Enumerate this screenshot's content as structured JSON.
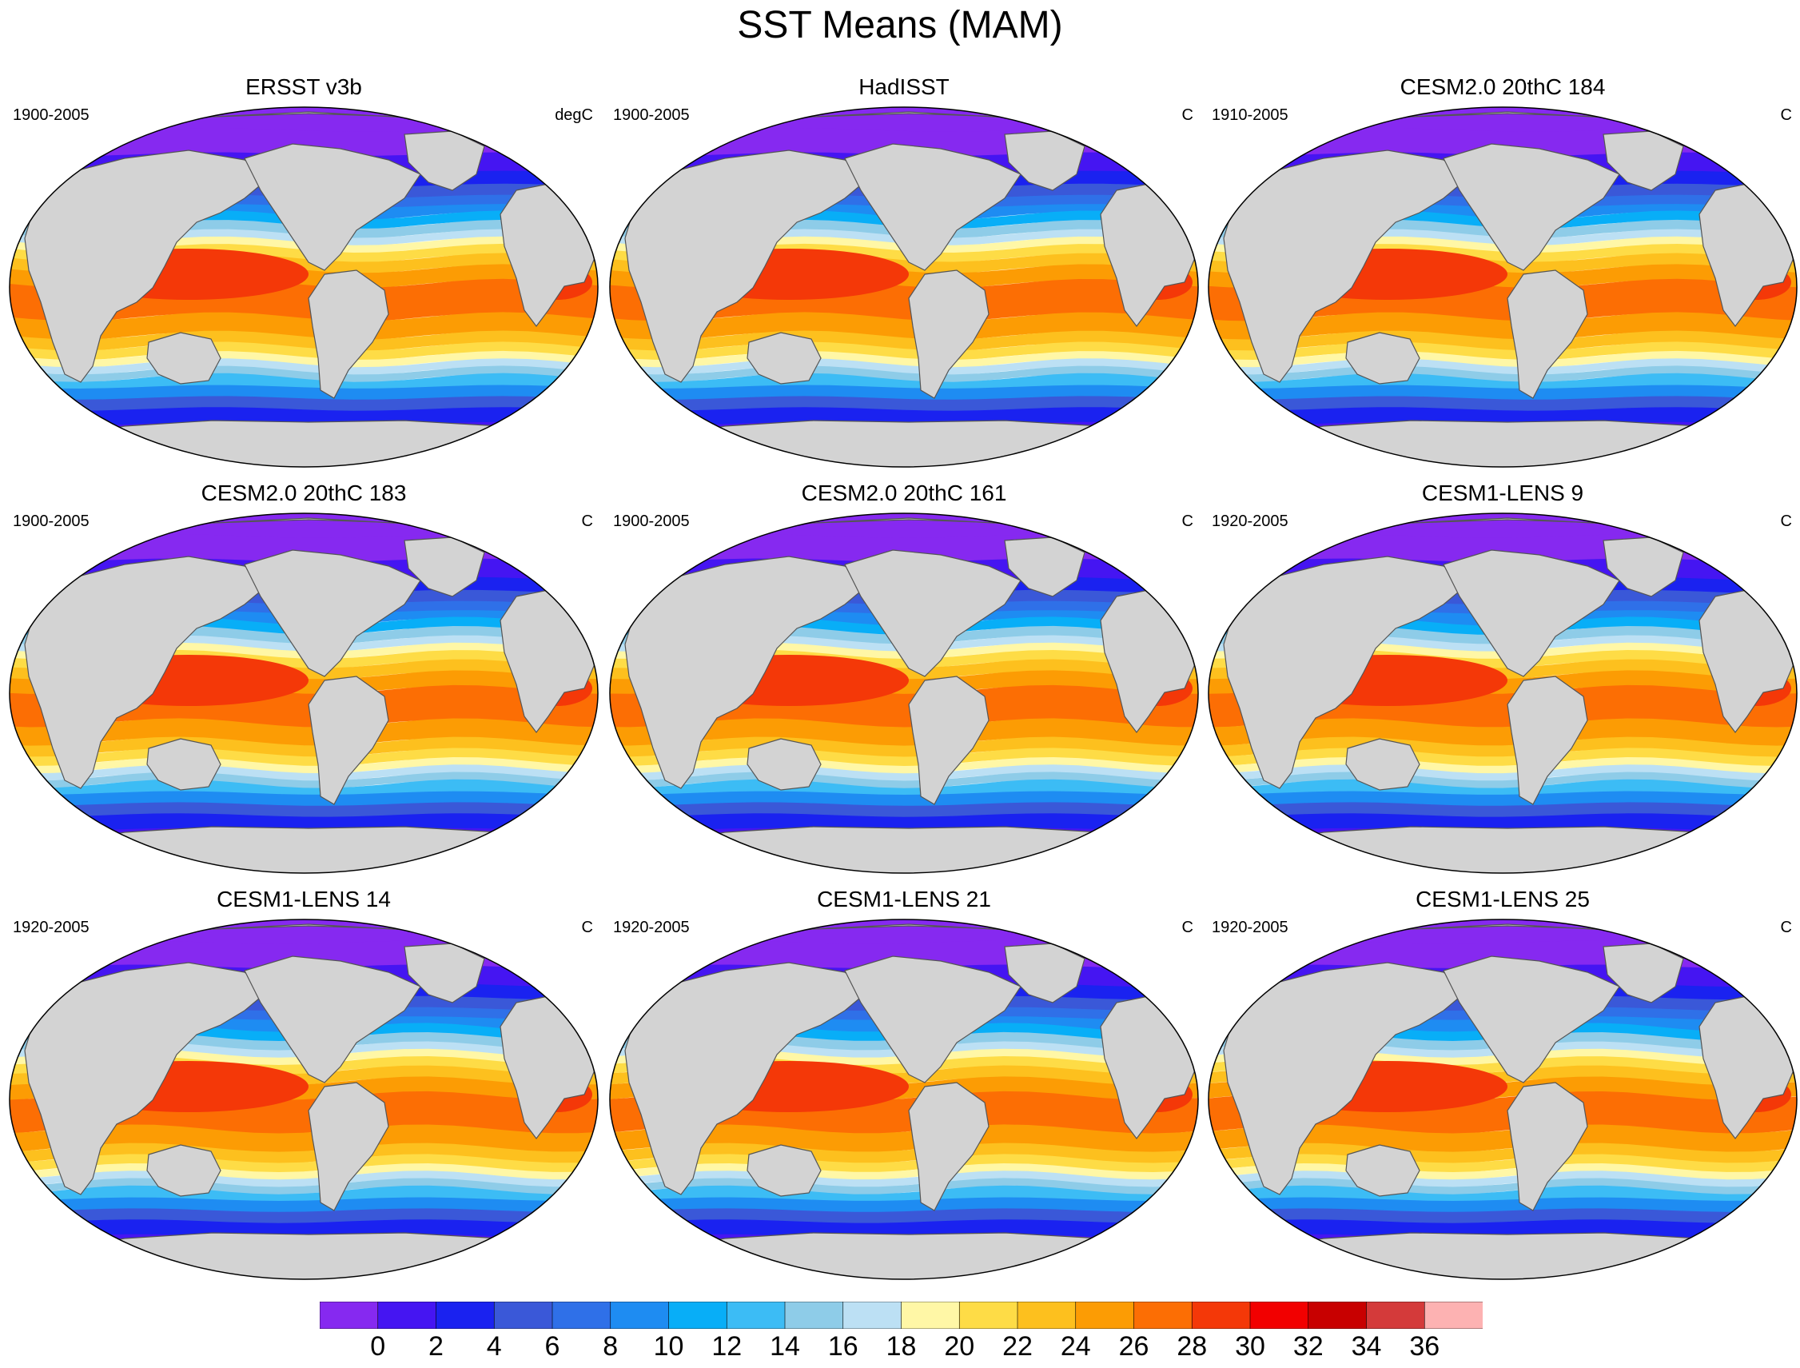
{
  "title": "SST Means (MAM)",
  "panels": [
    {
      "title": "ERSST v3b",
      "period": "1900-2005",
      "units": "degC"
    },
    {
      "title": "HadISST",
      "period": "1900-2005",
      "units": "C"
    },
    {
      "title": "CESM2.0 20thC 184",
      "period": "1910-2005",
      "units": "C"
    },
    {
      "title": "CESM2.0 20thC 183",
      "period": "1900-2005",
      "units": "C"
    },
    {
      "title": "CESM2.0 20thC 161",
      "period": "1900-2005",
      "units": "C"
    },
    {
      "title": "CESM1-LENS 9",
      "period": "1920-2005",
      "units": "C"
    },
    {
      "title": "CESM1-LENS 14",
      "period": "1920-2005",
      "units": "C"
    },
    {
      "title": "CESM1-LENS 21",
      "period": "1920-2005",
      "units": "C"
    },
    {
      "title": "CESM1-LENS 25",
      "period": "1920-2005",
      "units": "C"
    }
  ],
  "colorbar": {
    "labels": [
      "0",
      "2",
      "4",
      "6",
      "8",
      "10",
      "12",
      "14",
      "16",
      "18",
      "20",
      "22",
      "24",
      "26",
      "28",
      "30",
      "32",
      "34",
      "36"
    ],
    "colors": [
      "#8629f0",
      "#4515f2",
      "#1a22f0",
      "#3a58d8",
      "#2f70e8",
      "#1e8cf2",
      "#08aef7",
      "#3cbcf5",
      "#8ecce8",
      "#bce0f4",
      "#fff7a6",
      "#fedc46",
      "#fdc01e",
      "#fc9c04",
      "#fc6e04",
      "#f43808",
      "#f20000",
      "#c80000",
      "#d43a3a",
      "#fdb2b2"
    ]
  },
  "map_colors": {
    "land": "#d3d3d3",
    "missing": "#ffffff",
    "coast": "#555555"
  }
}
